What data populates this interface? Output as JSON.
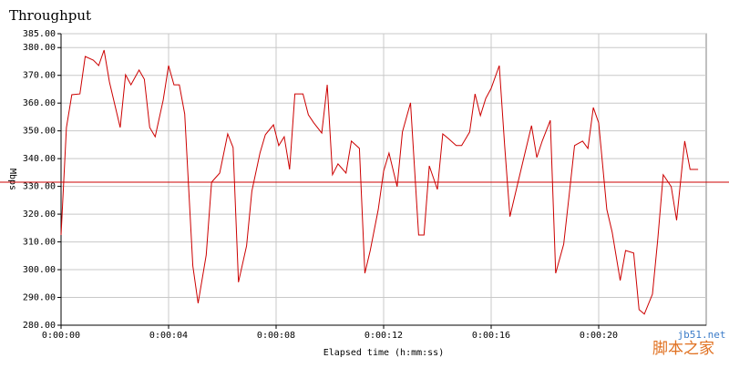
{
  "chart_data": {
    "type": "line",
    "title": "Throughput",
    "x_label": "Elapsed time (h:mm:ss)",
    "y_label": "Mbps",
    "x": [
      0,
      0.2,
      0.4,
      0.7,
      0.9,
      1.2,
      1.4,
      1.6,
      1.8,
      2.0,
      2.2,
      2.4,
      2.6,
      2.9,
      3.1,
      3.3,
      3.5,
      3.8,
      4.0,
      4.2,
      4.4,
      4.6,
      4.9,
      5.1,
      5.4,
      5.6,
      5.9,
      6.2,
      6.4,
      6.6,
      6.9,
      7.1,
      7.4,
      7.6,
      7.9,
      8.1,
      8.3,
      8.5,
      8.7,
      9.0,
      9.2,
      9.4,
      9.7,
      9.9,
      10.1,
      10.3,
      10.6,
      10.8,
      11.1,
      11.3,
      11.5,
      11.8,
      12.0,
      12.2,
      12.5,
      12.7,
      13.0,
      13.3,
      13.5,
      13.7,
      14.0,
      14.2,
      14.4,
      14.7,
      14.9,
      15.2,
      15.4,
      15.6,
      15.8,
      16.0,
      16.3,
      16.5,
      16.7,
      17.0,
      17.2,
      17.5,
      17.7,
      17.9,
      18.2,
      18.4,
      18.7,
      18.9,
      19.1,
      19.4,
      19.6,
      19.8,
      20.0,
      20.3,
      20.5,
      20.8,
      21.0,
      21.3,
      21.5,
      21.7,
      22.0,
      22.2,
      22.4,
      22.7,
      22.9,
      23.2,
      23.4,
      23.7
    ],
    "values": [
      312.5,
      351.2,
      363,
      363.3,
      376.8,
      375.5,
      373.5,
      379.1,
      367.6,
      359.4,
      351.2,
      370.2,
      366.6,
      371.9,
      368.6,
      351.2,
      347.9,
      361.1,
      373.5,
      366.6,
      366.6,
      356.1,
      301.4,
      287.9,
      305.3,
      331.5,
      334.8,
      348.9,
      344,
      295.5,
      308.6,
      328.3,
      342,
      348.6,
      352.2,
      344.7,
      347.9,
      336.1,
      363.3,
      363.3,
      355.8,
      352.9,
      349.2,
      366.6,
      334.2,
      338.1,
      334.8,
      346.3,
      343.7,
      298.7,
      306.9,
      321.7,
      335.5,
      342,
      329.9,
      349.6,
      360.1,
      312.5,
      312.5,
      337.4,
      328.9,
      348.9,
      347.3,
      344.7,
      344.7,
      349.6,
      363.3,
      355.5,
      361.7,
      365.3,
      373.5,
      344.7,
      319.1,
      331.5,
      339.7,
      351.9,
      340.4,
      346.3,
      353.8,
      298.7,
      309.2,
      326.6,
      344.7,
      346.3,
      343.7,
      358.4,
      352.9,
      321.7,
      313.5,
      296.1,
      306.9,
      306,
      285.6,
      284,
      291.2,
      311.2,
      334.2,
      329.9,
      317.8,
      346.3,
      336.1,
      336.1
    ],
    "color": "#cc0000",
    "reference_line": 331.5,
    "reference_color": "#cc0000",
    "xlim": [
      0,
      24
    ],
    "xticks": [
      {
        "value": 0,
        "label": "0:00:00"
      },
      {
        "value": 4,
        "label": "0:00:04"
      },
      {
        "value": 8,
        "label": "0:00:08"
      },
      {
        "value": 12,
        "label": "0:00:12"
      },
      {
        "value": 16,
        "label": "0:00:16"
      },
      {
        "value": 20,
        "label": "0:00:20"
      }
    ],
    "ylim": [
      280,
      385
    ],
    "yticks": [
      {
        "value": 280,
        "label": "280.00"
      },
      {
        "value": 290,
        "label": "290.00"
      },
      {
        "value": 300,
        "label": "300.00"
      },
      {
        "value": 310,
        "label": "310.00"
      },
      {
        "value": 320,
        "label": "320.00"
      },
      {
        "value": 330,
        "label": "330.00"
      },
      {
        "value": 340,
        "label": "340.00"
      },
      {
        "value": 350,
        "label": "350.00"
      },
      {
        "value": 360,
        "label": "360.00"
      },
      {
        "value": 370,
        "label": "370.00"
      },
      {
        "value": 380,
        "label": "380.00"
      },
      {
        "value": 385,
        "label": "385.00"
      }
    ],
    "grid": true,
    "watermark": [
      "jb51.net",
      "脚本之家"
    ]
  }
}
